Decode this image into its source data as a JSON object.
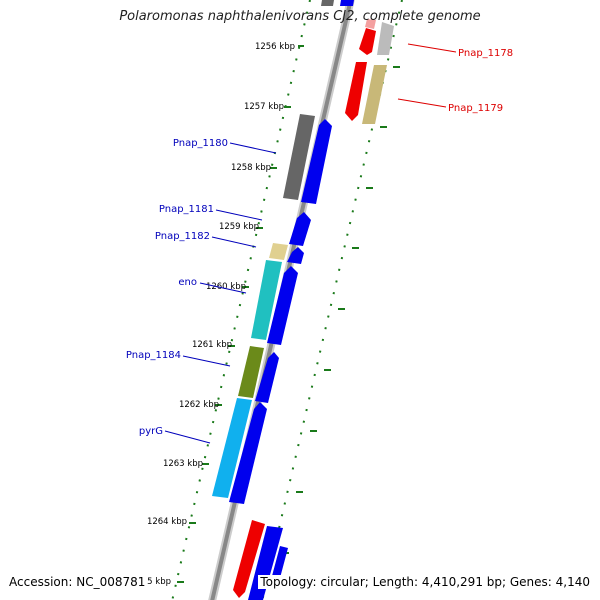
{
  "title": "Polaromonas naphthalenivorans CJ2, complete genome",
  "footer": {
    "accession": "Accession: NC_008781",
    "topology": "Topology: circular; Length: 4,410,291 bp; Genes: 4,140"
  },
  "scale_marks": [
    {
      "position_kbp": 1256,
      "label": "1256 kbp"
    },
    {
      "position_kbp": 1257,
      "label": "1257 kbp"
    },
    {
      "position_kbp": 1258,
      "label": "1258 kbp"
    },
    {
      "position_kbp": 1259,
      "label": "1259 kbp"
    },
    {
      "position_kbp": 1260,
      "label": "1260 kbp"
    },
    {
      "position_kbp": 1261,
      "label": "1261 kbp"
    },
    {
      "position_kbp": 1262,
      "label": "1262 kbp"
    },
    {
      "position_kbp": 1263,
      "label": "1263 kbp"
    },
    {
      "position_kbp": 1264,
      "label": "1264 kbp"
    },
    {
      "position_kbp": 1265,
      "label": "1265 kbp"
    }
  ],
  "gene_labels": [
    {
      "name": "Pnap_1178",
      "color": "#dd0000",
      "side": "right"
    },
    {
      "name": "Pnap_1179",
      "color": "#dd0000",
      "side": "right"
    },
    {
      "name": "Pnap_1180",
      "color": "#0000bb",
      "side": "left"
    },
    {
      "name": "Pnap_1181",
      "color": "#0000bb",
      "side": "left"
    },
    {
      "name": "Pnap_1182",
      "color": "#0000bb",
      "side": "left"
    },
    {
      "name": "eno",
      "color": "#0000bb",
      "side": "left"
    },
    {
      "name": "Pnap_1184",
      "color": "#0000bb",
      "side": "left"
    },
    {
      "name": "pyrG",
      "color": "#0000bb",
      "side": "left"
    }
  ],
  "colors": {
    "forward_cds": "#0000ee",
    "reverse_cds": "#ee0000",
    "backbone": "#888888",
    "tick_green": "#1a7a1a",
    "cog_gray": "#666666",
    "cog_cyan": "#20c0c0",
    "cog_tan": "#c8b878",
    "cog_olive": "#6b8a1a",
    "cog_skyblue": "#10b0ee",
    "cog_lightgray": "#bbbbbb"
  }
}
